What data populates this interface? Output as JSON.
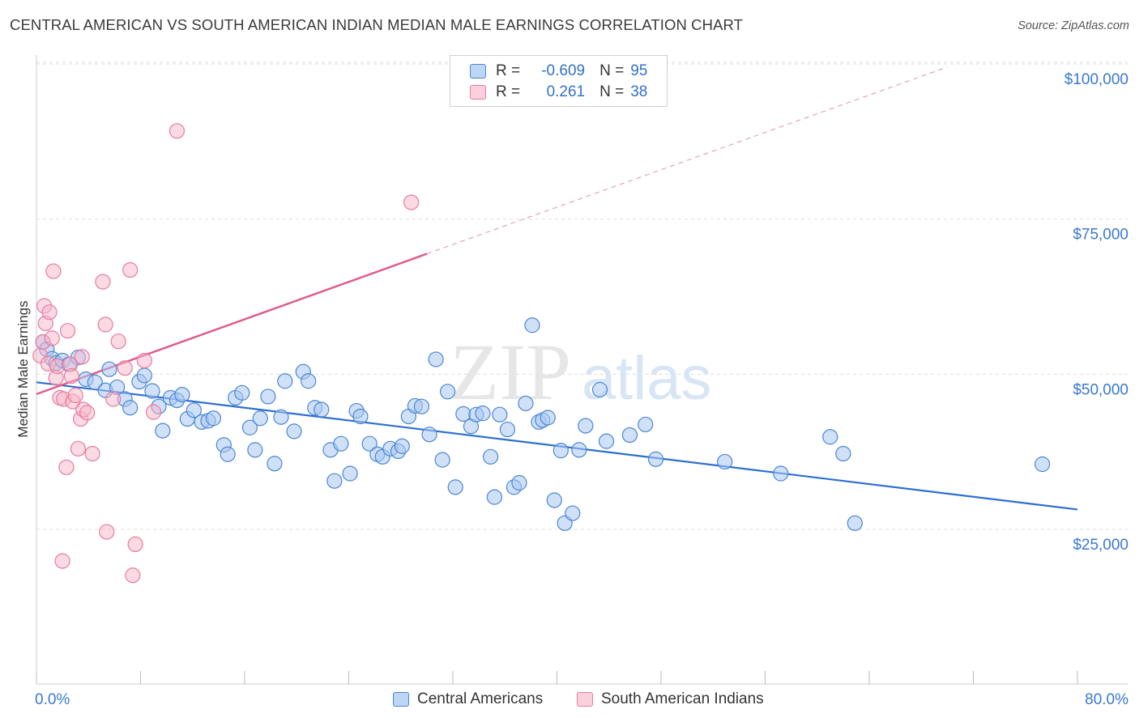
{
  "title": "CENTRAL AMERICAN VS SOUTH AMERICAN INDIAN MEDIAN MALE EARNINGS CORRELATION CHART",
  "source": "Source: ZipAtlas.com",
  "watermark": {
    "zip": "ZIP",
    "atlas": "atlas"
  },
  "legend": {
    "row1": {
      "r_label": "R =",
      "r_value": "-0.609",
      "n_label": "N =",
      "n_value": "95"
    },
    "row2": {
      "r_label": "R =",
      "r_value": "0.261",
      "n_label": "N =",
      "n_value": "38"
    }
  },
  "colors": {
    "blue_fill": "#a9c8f0",
    "blue_stroke": "#4a86d4",
    "blue_line": "#2c6fd1",
    "pink_fill": "#f7b6c9",
    "pink_stroke": "#e57c9e",
    "pink_line": "#e05c8a",
    "axis_text": "#3a78d0",
    "grid": "#dddddd"
  },
  "chart_data": {
    "type": "scatter",
    "title": "CENTRAL AMERICAN VS SOUTH AMERICAN INDIAN MEDIAN MALE EARNINGS CORRELATION CHART",
    "xlabel": "",
    "ylabel": "Median Male Earnings",
    "xlim": [
      0,
      80
    ],
    "ylim": [
      0,
      105000
    ],
    "x_tick_labels": [
      "0.0%",
      "80.0%"
    ],
    "y_ticks": [
      25000,
      50000,
      75000,
      100000
    ],
    "y_tick_labels": [
      "$25,000",
      "$50,000",
      "$75,000",
      "$100,000"
    ],
    "series": [
      {
        "name": "Central Americans",
        "color": "#4a86d4",
        "r": -0.609,
        "n": 95,
        "trend": {
          "x": [
            0,
            80
          ],
          "y": [
            48700,
            28200
          ]
        },
        "points": [
          [
            0.5,
            55200
          ],
          [
            0.8,
            54000
          ],
          [
            1.2,
            52500
          ],
          [
            1.5,
            51800
          ],
          [
            2.0,
            52200
          ],
          [
            2.5,
            51600
          ],
          [
            3.2,
            52700
          ],
          [
            3.8,
            49200
          ],
          [
            4.5,
            48700
          ],
          [
            5.3,
            47400
          ],
          [
            5.6,
            50800
          ],
          [
            6.2,
            47900
          ],
          [
            6.8,
            46000
          ],
          [
            7.2,
            44600
          ],
          [
            7.9,
            48800
          ],
          [
            8.3,
            49800
          ],
          [
            8.9,
            47300
          ],
          [
            9.4,
            44800
          ],
          [
            9.7,
            40900
          ],
          [
            10.3,
            46200
          ],
          [
            10.8,
            45800
          ],
          [
            11.2,
            46700
          ],
          [
            11.6,
            42800
          ],
          [
            12.1,
            44200
          ],
          [
            12.7,
            42300
          ],
          [
            13.2,
            42500
          ],
          [
            13.6,
            42900
          ],
          [
            14.4,
            38600
          ],
          [
            14.7,
            37100
          ],
          [
            15.3,
            46200
          ],
          [
            15.8,
            47000
          ],
          [
            16.4,
            41400
          ],
          [
            16.8,
            37800
          ],
          [
            17.2,
            42900
          ],
          [
            17.8,
            46400
          ],
          [
            18.3,
            35600
          ],
          [
            18.8,
            43100
          ],
          [
            19.1,
            48900
          ],
          [
            19.8,
            40800
          ],
          [
            20.5,
            50400
          ],
          [
            20.9,
            48900
          ],
          [
            21.4,
            44600
          ],
          [
            21.9,
            44300
          ],
          [
            22.6,
            37800
          ],
          [
            22.9,
            32800
          ],
          [
            23.4,
            38800
          ],
          [
            24.1,
            34000
          ],
          [
            24.6,
            44100
          ],
          [
            24.9,
            43200
          ],
          [
            25.6,
            38800
          ],
          [
            26.2,
            37100
          ],
          [
            26.6,
            36700
          ],
          [
            27.2,
            38000
          ],
          [
            27.8,
            37600
          ],
          [
            28.1,
            38400
          ],
          [
            28.6,
            43200
          ],
          [
            29.1,
            44900
          ],
          [
            29.6,
            44800
          ],
          [
            30.2,
            40300
          ],
          [
            30.7,
            52400
          ],
          [
            31.2,
            36200
          ],
          [
            31.6,
            47200
          ],
          [
            32.2,
            31800
          ],
          [
            32.8,
            43600
          ],
          [
            33.4,
            41600
          ],
          [
            33.8,
            43500
          ],
          [
            34.3,
            43700
          ],
          [
            34.9,
            36700
          ],
          [
            35.2,
            30200
          ],
          [
            35.6,
            43500
          ],
          [
            36.2,
            41100
          ],
          [
            36.7,
            31800
          ],
          [
            37.1,
            32500
          ],
          [
            37.6,
            45300
          ],
          [
            38.1,
            57900
          ],
          [
            38.6,
            42300
          ],
          [
            38.9,
            42600
          ],
          [
            39.3,
            43000
          ],
          [
            39.8,
            29700
          ],
          [
            40.3,
            37700
          ],
          [
            40.6,
            26000
          ],
          [
            41.2,
            27600
          ],
          [
            41.7,
            37800
          ],
          [
            42.2,
            41700
          ],
          [
            43.3,
            47500
          ],
          [
            43.8,
            39200
          ],
          [
            45.6,
            40200
          ],
          [
            46.8,
            41900
          ],
          [
            47.6,
            36300
          ],
          [
            52.9,
            35900
          ],
          [
            57.2,
            34000
          ],
          [
            61.0,
            39900
          ],
          [
            62.0,
            37200
          ],
          [
            62.9,
            26000
          ],
          [
            77.3,
            35500
          ]
        ]
      },
      {
        "name": "South American Indians",
        "color": "#e57c9e",
        "r": 0.261,
        "n": 38,
        "trend": {
          "x": [
            0,
            30
          ],
          "y": [
            46800,
            69400
          ]
        },
        "trend_extended": {
          "x": [
            30,
            70
          ],
          "y": [
            69400,
            99500
          ]
        },
        "points": [
          [
            0.3,
            53000
          ],
          [
            0.5,
            55200
          ],
          [
            0.6,
            61000
          ],
          [
            0.7,
            58200
          ],
          [
            0.9,
            51700
          ],
          [
            1.0,
            60000
          ],
          [
            1.2,
            55800
          ],
          [
            1.3,
            66600
          ],
          [
            1.5,
            49400
          ],
          [
            1.6,
            51300
          ],
          [
            1.8,
            46200
          ],
          [
            2.0,
            19900
          ],
          [
            2.1,
            46000
          ],
          [
            2.3,
            35000
          ],
          [
            2.4,
            57000
          ],
          [
            2.6,
            51600
          ],
          [
            2.7,
            49700
          ],
          [
            2.8,
            45600
          ],
          [
            3.0,
            46600
          ],
          [
            3.2,
            38000
          ],
          [
            3.4,
            42800
          ],
          [
            3.5,
            52800
          ],
          [
            3.6,
            44300
          ],
          [
            3.9,
            43800
          ],
          [
            4.3,
            37200
          ],
          [
            5.1,
            64900
          ],
          [
            5.3,
            58000
          ],
          [
            5.4,
            24600
          ],
          [
            5.9,
            46000
          ],
          [
            6.3,
            55300
          ],
          [
            6.8,
            51000
          ],
          [
            7.2,
            66800
          ],
          [
            7.4,
            17600
          ],
          [
            7.6,
            22600
          ],
          [
            8.3,
            52200
          ],
          [
            9.0,
            43900
          ],
          [
            10.8,
            89200
          ],
          [
            28.8,
            77700
          ]
        ]
      }
    ]
  }
}
